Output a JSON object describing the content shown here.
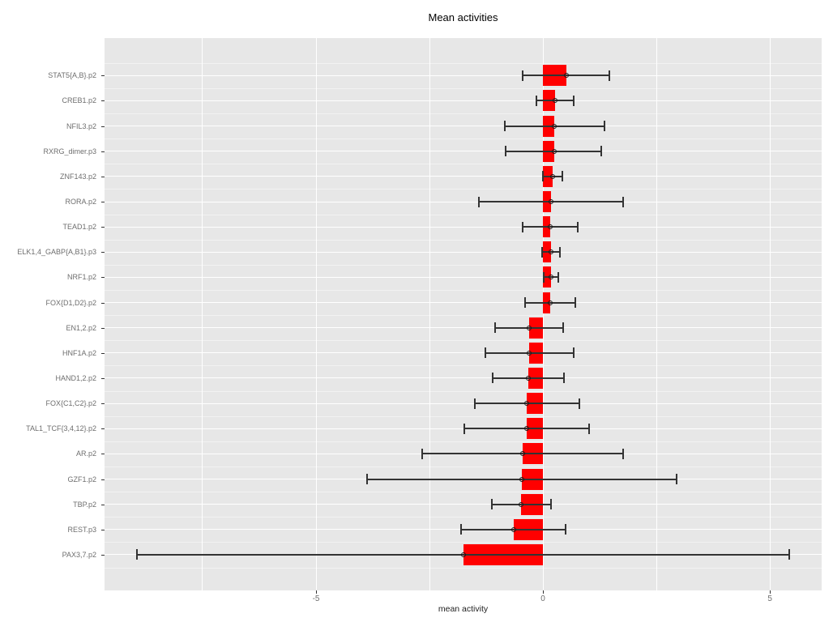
{
  "chart_data": {
    "type": "bar",
    "orientation": "horizontal",
    "title": "Mean activities",
    "xlabel": "mean activity",
    "xlim": [
      -9.66,
      6.14
    ],
    "x_ticks": [
      -5,
      0,
      5
    ],
    "x_tick_labels": [
      "-5",
      "0",
      "5"
    ],
    "gridlines_x": [
      -7.5,
      -5,
      -2.5,
      0,
      2.5,
      5
    ],
    "grid_on": true,
    "legend": "none",
    "categories": [
      "STAT5{A,B}.p2",
      "CREB1.p2",
      "NFIL3.p2",
      "RXRG_dimer.p3",
      "ZNF143.p2",
      "RORA.p2",
      "TEAD1.p2",
      "ELK1,4_GABP{A,B1}.p3",
      "NRF1.p2",
      "FOX{D1,D2}.p2",
      "EN1,2.p2",
      "HNF1A.p2",
      "HAND1,2.p2",
      "FOX{C1,C2}.p2",
      "TAL1_TCF{3,4,12}.p2",
      "AR.p2",
      "GZF1.p2",
      "TBP.p2",
      "REST.p3",
      "PAX3,7.p2"
    ],
    "values": [
      0.51,
      0.27,
      0.25,
      0.24,
      0.21,
      0.18,
      0.16,
      0.18,
      0.17,
      0.16,
      -0.3,
      -0.3,
      -0.32,
      -0.35,
      -0.36,
      -0.45,
      -0.46,
      -0.48,
      -0.65,
      -1.76
    ],
    "error_low": [
      -0.44,
      -0.14,
      -0.84,
      -0.82,
      -0.01,
      -1.41,
      -0.44,
      -0.02,
      0.01,
      -0.4,
      -1.05,
      -1.27,
      -1.1,
      -1.5,
      -1.74,
      -2.66,
      -3.87,
      -1.13,
      -1.8,
      -8.94
    ],
    "error_high": [
      1.46,
      0.68,
      1.35,
      1.29,
      0.43,
      1.77,
      0.76,
      0.38,
      0.33,
      0.72,
      0.44,
      0.67,
      0.46,
      0.8,
      1.02,
      1.76,
      2.95,
      0.17,
      0.5,
      5.42
    ],
    "colors": {
      "bar": "#ff0000",
      "errorbar": "#333333",
      "panel_background": "#e7e7e7",
      "gridline": "#ffffff",
      "axis_text": "#6e6e6e",
      "title_text": "#000000"
    }
  }
}
